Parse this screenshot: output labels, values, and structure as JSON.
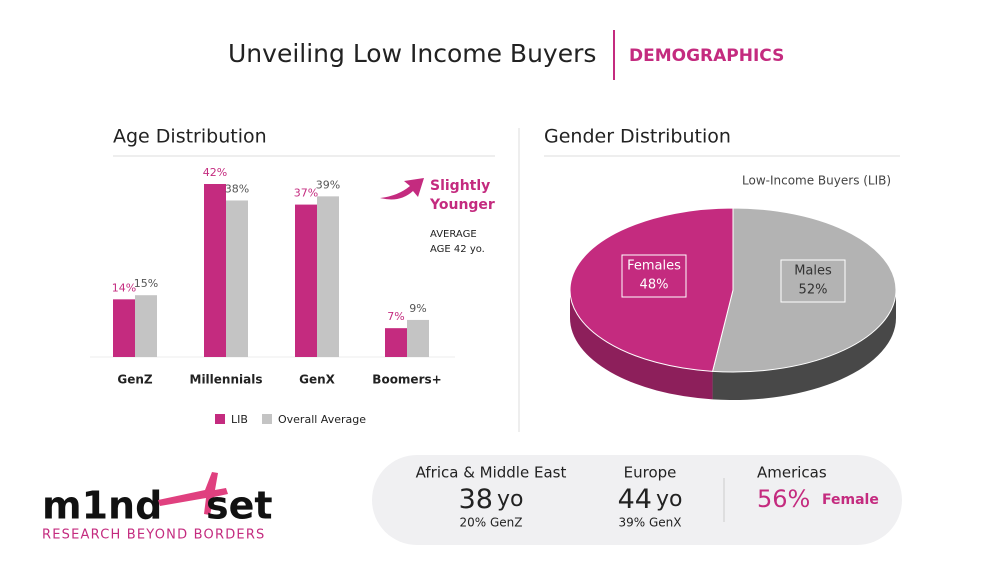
{
  "header": {
    "title": "Unveiling Low Income Buyers",
    "section": "DEMOGRAPHICS"
  },
  "chart_data": [
    {
      "type": "bar",
      "title": "Age Distribution",
      "categories": [
        "GenZ",
        "Millennials",
        "GenX",
        "Boomers+"
      ],
      "series": [
        {
          "name": "LIB",
          "color": "#c42b7f",
          "values": [
            14,
            42,
            37,
            7
          ],
          "value_labels": [
            "14%",
            "42%",
            "37%",
            "7%"
          ]
        },
        {
          "name": "Overall Average",
          "color": "#c4c4c4",
          "values": [
            15,
            38,
            39,
            9
          ],
          "value_labels": [
            "15%",
            "38%",
            "39%",
            "9%"
          ]
        }
      ],
      "annotation": {
        "highlight_lines": [
          "Slightly",
          "Younger"
        ],
        "note_lines": [
          "AVERAGE",
          "AGE 42 yo."
        ]
      }
    },
    {
      "type": "pie",
      "title": "Gender Distribution",
      "subtitle": "Low-Income Buyers (LIB)",
      "categories": [
        "Females",
        "Males"
      ],
      "values": [
        48,
        52
      ],
      "value_labels": [
        "48%",
        "52%"
      ],
      "colors": [
        "#c42b7f",
        "#b3b3b3"
      ]
    }
  ],
  "regions": [
    {
      "name": "Africa & Middle East",
      "age": "38",
      "unit": "yo",
      "note": "20% GenZ"
    },
    {
      "name": "Europe",
      "age": "44",
      "unit": "yo",
      "note": "39% GenX"
    },
    {
      "name": "Americas",
      "share": "56%",
      "label": "Female"
    }
  ],
  "logo": {
    "left": "m1nd",
    "right": "set",
    "tagline": "RESEARCH BEYOND BORDERS"
  }
}
